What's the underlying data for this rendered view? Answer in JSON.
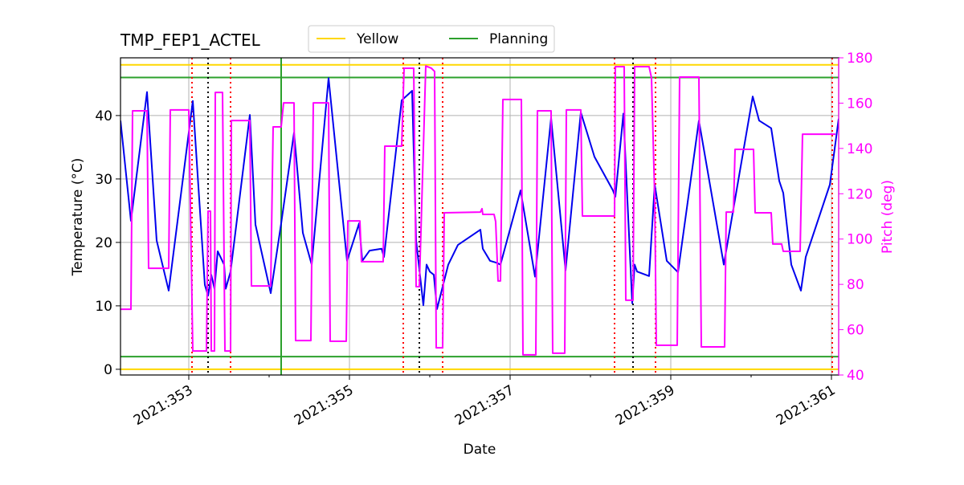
{
  "chart_data": {
    "type": "line",
    "title": "TMP_FEP1_ACTEL",
    "x_label": "Date",
    "y_label": "Temperature (°C)",
    "y2_label": "Pitch (deg)",
    "xlim": [
      352.15,
      361.09
    ],
    "ylim": [
      -0.9,
      49.1
    ],
    "y2lim": [
      40,
      180
    ],
    "xticks": [
      {
        "value": 353,
        "label": "2021:353"
      },
      {
        "value": 355,
        "label": "2021:355"
      },
      {
        "value": 357,
        "label": "2021:357"
      },
      {
        "value": 359,
        "label": "2021:359"
      },
      {
        "value": 361,
        "label": "2021:361"
      }
    ],
    "xminor": [
      354,
      356,
      358,
      360
    ],
    "yticks": [
      0,
      10,
      20,
      30,
      40
    ],
    "y2ticks": [
      40,
      60,
      80,
      100,
      120,
      140,
      160,
      180
    ],
    "grid": true,
    "series": [
      {
        "color": "#0000ee",
        "x": [
          352.15,
          352.28,
          352.48,
          352.6,
          352.75,
          353.05,
          353.2,
          353.24,
          353.28,
          353.32,
          353.36,
          353.44,
          353.46,
          353.52,
          353.76,
          353.83,
          354.02,
          354.15,
          354.31,
          354.42,
          354.53,
          354.74,
          354.97,
          355.12,
          355.16,
          355.25,
          355.4,
          355.43,
          355.65,
          355.78,
          355.83,
          355.92,
          355.96,
          356.0,
          356.05,
          356.09,
          356.23,
          356.35,
          356.63,
          356.66,
          356.75,
          356.83,
          356.88,
          357.13,
          357.31,
          357.51,
          357.69,
          357.88,
          358.05,
          358.28,
          358.31,
          358.41,
          358.52,
          358.55,
          358.58,
          358.73,
          358.8,
          358.95,
          359.09,
          359.35,
          359.66,
          360.02,
          360.1,
          360.25,
          360.35,
          360.4,
          360.5,
          360.62,
          360.68,
          360.98,
          361.09
        ],
        "values": [
          39.2,
          23.4,
          43.7,
          20.3,
          12.4,
          42.3,
          13.3,
          11.6,
          14.9,
          12.7,
          18.6,
          16.5,
          12.7,
          15.4,
          40.1,
          22.8,
          12.0,
          23.0,
          37.3,
          21.5,
          16.5,
          45.9,
          17.1,
          23.0,
          17.1,
          18.7,
          19.0,
          17.7,
          42.4,
          43.9,
          20.3,
          10.1,
          16.5,
          15.4,
          14.9,
          9.5,
          16.5,
          19.6,
          22.0,
          19.0,
          17.1,
          16.8,
          16.5,
          28.2,
          14.6,
          39.6,
          15.6,
          40.5,
          33.5,
          28.2,
          27.2,
          40.3,
          10.4,
          16.5,
          15.4,
          14.7,
          29.1,
          17.1,
          15.3,
          39.2,
          16.5,
          43.0,
          39.2,
          38.0,
          29.7,
          27.8,
          16.5,
          12.4,
          17.7,
          29.1,
          39.5
        ]
      },
      {
        "color": "#ff00ff",
        "axis": "y2",
        "x": [
          352.15,
          352.28,
          352.3,
          352.48,
          352.5,
          352.75,
          352.77,
          353.0,
          353.05,
          353.22,
          353.24,
          353.27,
          353.28,
          353.32,
          353.33,
          353.42,
          353.45,
          353.52,
          353.53,
          353.76,
          353.78,
          354.02,
          354.05,
          354.15,
          354.18,
          354.31,
          354.33,
          354.52,
          354.55,
          354.74,
          354.76,
          354.96,
          354.98,
          355.13,
          355.15,
          355.42,
          355.44,
          355.65,
          355.68,
          355.8,
          355.83,
          355.87,
          355.95,
          356.02,
          356.06,
          356.08,
          356.16,
          356.18,
          356.63,
          356.65,
          356.66,
          356.8,
          356.82,
          356.85,
          356.88,
          356.91,
          357.14,
          357.16,
          357.32,
          357.34,
          357.51,
          357.53,
          357.68,
          357.7,
          357.88,
          357.9,
          358.3,
          358.31,
          358.42,
          358.44,
          358.53,
          358.55,
          358.73,
          358.76,
          358.8,
          358.82,
          359.08,
          359.11,
          359.35,
          359.38,
          359.67,
          359.69,
          359.78,
          359.8,
          360.03,
          360.05,
          360.25,
          360.27,
          360.38,
          360.4,
          360.61,
          360.64,
          361.05
        ],
        "values": [
          69,
          69,
          156.6,
          156.6,
          87.1,
          87.1,
          157,
          157,
          50.6,
          50.6,
          112.3,
          112.3,
          50.6,
          50.6,
          164.7,
          164.7,
          50.6,
          50.6,
          152.3,
          152.3,
          79.3,
          79.3,
          149.5,
          149.5,
          160.1,
          160.1,
          55.2,
          55.2,
          160.1,
          160.1,
          54.9,
          54.9,
          108,
          108,
          90,
          90,
          141,
          141,
          175.4,
          175.4,
          79,
          79,
          176.4,
          175.4,
          174,
          52,
          52,
          111.6,
          111.9,
          113.4,
          110.9,
          110.9,
          107.7,
          81.5,
          81.5,
          161.6,
          161.6,
          48.9,
          48.9,
          156.6,
          156.6,
          49.6,
          49.6,
          157,
          157,
          110.2,
          110.2,
          176.1,
          176.1,
          73,
          73,
          176.1,
          176.1,
          171.1,
          118.3,
          53.1,
          53.1,
          171.5,
          171.5,
          52.4,
          52.4,
          111.9,
          111.9,
          139.6,
          139.6,
          111.6,
          111.6,
          97.8,
          97.8,
          94.6,
          94.6,
          146.3,
          146.3
        ]
      }
    ],
    "hlines": [
      {
        "name": "Yellow",
        "color": "#ffd700",
        "values": [
          48,
          0
        ]
      },
      {
        "name": "Planning",
        "color": "#2ca02c",
        "values": [
          46,
          2
        ]
      }
    ],
    "vlines": [
      {
        "color": "#ff0000",
        "style": "dotted",
        "x": [
          353.04,
          353.52,
          355.67,
          356.16,
          358.3,
          358.81,
          361.01
        ]
      },
      {
        "color": "#000000",
        "style": "dotted",
        "x": [
          353.24,
          355.87,
          358.53
        ]
      },
      {
        "color": "#2ca02c",
        "style": "solid",
        "x": [
          354.15
        ]
      }
    ]
  }
}
